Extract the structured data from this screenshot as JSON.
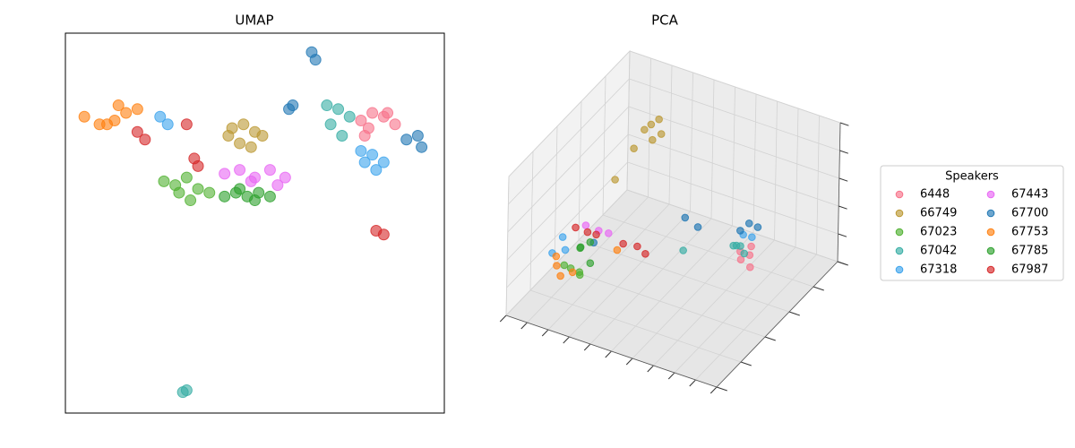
{
  "chart_data": [
    {
      "type": "scatter",
      "title": "UMAP",
      "xlim": [
        0,
        10
      ],
      "ylim": [
        0,
        10
      ],
      "series": [
        {
          "color": "#f77189",
          "x": [
            7.8,
            8.1,
            8.4,
            8.7,
            8.0,
            8.5,
            7.9
          ],
          "values": [
            7.7,
            7.9,
            7.8,
            7.6,
            7.5,
            7.9,
            7.3
          ]
        },
        {
          "color": "#bb9832",
          "x": [
            4.4,
            4.7,
            5.0,
            5.2,
            4.6,
            4.9,
            4.3
          ],
          "values": [
            7.5,
            7.6,
            7.4,
            7.3,
            7.1,
            7.0,
            7.3
          ]
        },
        {
          "color": "#50b131",
          "x": [
            2.6,
            2.9,
            3.2,
            3.5,
            3.8,
            3.3,
            3.0
          ],
          "values": [
            6.1,
            6.0,
            6.2,
            5.9,
            5.8,
            5.6,
            5.8
          ]
        },
        {
          "color": "#36ada4",
          "x": [
            6.9,
            7.2,
            7.5,
            7.3,
            7.0,
            3.1,
            3.2
          ],
          "values": [
            8.1,
            8.0,
            7.8,
            7.3,
            7.6,
            0.55,
            0.6
          ]
        },
        {
          "color": "#3ba3ec",
          "x": [
            7.8,
            8.1,
            8.4,
            8.2,
            7.9,
            2.5,
            2.7
          ],
          "values": [
            6.9,
            6.8,
            6.6,
            6.4,
            6.6,
            7.8,
            7.6
          ]
        },
        {
          "color": "#e866f4",
          "x": [
            4.2,
            4.6,
            5.0,
            5.4,
            5.8,
            5.6,
            4.9
          ],
          "values": [
            6.3,
            6.4,
            6.2,
            6.4,
            6.2,
            6.0,
            6.1
          ]
        },
        {
          "color": "#1f77b4",
          "x": [
            9.0,
            9.3,
            9.4,
            6.5,
            6.6,
            5.9,
            6.0
          ],
          "values": [
            7.2,
            7.3,
            7.0,
            9.5,
            9.3,
            8.0,
            8.1
          ]
        },
        {
          "color": "#ff7f0e",
          "x": [
            0.5,
            0.9,
            1.3,
            1.6,
            1.9,
            1.4,
            1.1
          ],
          "values": [
            7.8,
            7.6,
            7.7,
            7.9,
            8.0,
            8.1,
            7.6
          ]
        },
        {
          "color": "#2ca02c",
          "x": [
            4.2,
            4.5,
            4.8,
            5.1,
            5.4,
            4.6,
            5.0
          ],
          "values": [
            5.7,
            5.8,
            5.7,
            5.8,
            5.7,
            5.9,
            5.6
          ]
        },
        {
          "color": "#d62728",
          "x": [
            1.9,
            2.1,
            3.2,
            3.4,
            3.5,
            8.2,
            8.4
          ],
          "values": [
            7.4,
            7.2,
            7.6,
            6.7,
            6.5,
            4.8,
            4.7
          ]
        }
      ]
    },
    {
      "type": "scatter3d",
      "title": "PCA",
      "legend_title": "Speakers",
      "legend": "right",
      "xlim": [
        0,
        10
      ],
      "ylim": [
        0,
        10
      ],
      "zlim": [
        0,
        10
      ],
      "xticks": [
        0,
        1,
        2,
        3,
        4,
        5,
        6,
        7,
        8,
        9,
        10
      ],
      "yticks": [
        0,
        2,
        4,
        6,
        8,
        10
      ],
      "zticks": [
        0,
        2,
        4,
        6,
        8,
        10
      ],
      "series": [
        {
          "name": "6448",
          "color": "#f77189",
          "x": [
            7.5,
            7.8,
            8.0,
            7.3,
            7.7
          ],
          "y": [
            6.3,
            6.5,
            6.2,
            6.6,
            6.8
          ],
          "z": [
            2.2,
            2.5,
            2.0,
            2.4,
            2.8
          ]
        },
        {
          "name": "66749",
          "color": "#bb9832",
          "x": [
            3.0,
            3.2,
            3.5,
            2.8,
            3.4,
            2.5,
            3.8
          ],
          "y": [
            6.0,
            6.2,
            5.8,
            5.5,
            6.5,
            4.5,
            6.0
          ],
          "z": [
            9.5,
            9.8,
            9.2,
            8.5,
            10,
            7.0,
            9.6
          ]
        },
        {
          "name": "67023",
          "color": "#50b131",
          "x": [
            2.0,
            2.3,
            2.6,
            1.8
          ],
          "y": [
            1.8,
            2.0,
            1.5,
            1.6
          ],
          "z": [
            2.8,
            2.5,
            2.9,
            3.1
          ]
        },
        {
          "name": "67042",
          "color": "#36ada4",
          "x": [
            7.0,
            7.3,
            6.8,
            7.6,
            5.5
          ],
          "y": [
            6.8,
            6.6,
            6.9,
            6.4,
            5.0
          ],
          "z": [
            2.5,
            2.8,
            2.3,
            2.6,
            3.0
          ]
        },
        {
          "name": "67318",
          "color": "#3ba3ec",
          "x": [
            1.2,
            1.5,
            7.2,
            7.5,
            1.0
          ],
          "y": [
            2.5,
            2.2,
            7.0,
            7.2,
            2.0
          ],
          "z": [
            4.0,
            3.5,
            3.2,
            3.0,
            3.2
          ]
        },
        {
          "name": "67443",
          "color": "#e866f4",
          "x": [
            2.0,
            2.5,
            2.8
          ],
          "y": [
            3.0,
            3.2,
            3.5
          ],
          "z": [
            4.8,
            4.5,
            4.2
          ]
        },
        {
          "name": "67700",
          "color": "#1f77b4",
          "x": [
            2.5,
            5.0,
            5.5,
            7.3,
            7.6,
            7.0
          ],
          "y": [
            2.8,
            6.0,
            6.2,
            7.3,
            7.5,
            7.1
          ],
          "z": [
            4.0,
            4.2,
            3.6,
            3.8,
            3.5,
            3.3
          ]
        },
        {
          "name": "67753",
          "color": "#ff7f0e",
          "x": [
            1.5,
            1.8,
            2.2,
            1.3,
            3.5
          ],
          "y": [
            1.5,
            1.3,
            1.6,
            1.8,
            3.0
          ],
          "z": [
            3.0,
            2.6,
            2.8,
            3.3,
            3.8
          ]
        },
        {
          "name": "67785",
          "color": "#2ca02c",
          "x": [
            2.2,
            2.5,
            2.0,
            2.8
          ],
          "y": [
            2.2,
            2.5,
            2.6,
            2.0
          ],
          "z": [
            4.0,
            4.3,
            3.6,
            3.4
          ]
        },
        {
          "name": "67987",
          "color": "#d62728",
          "x": [
            1.8,
            2.2,
            3.5,
            4.0,
            4.5,
            2.5
          ],
          "y": [
            2.5,
            2.8,
            3.5,
            3.8,
            3.6,
            3.0
          ],
          "z": [
            5.0,
            4.6,
            3.8,
            3.6,
            3.5,
            4.4
          ]
        }
      ]
    }
  ]
}
